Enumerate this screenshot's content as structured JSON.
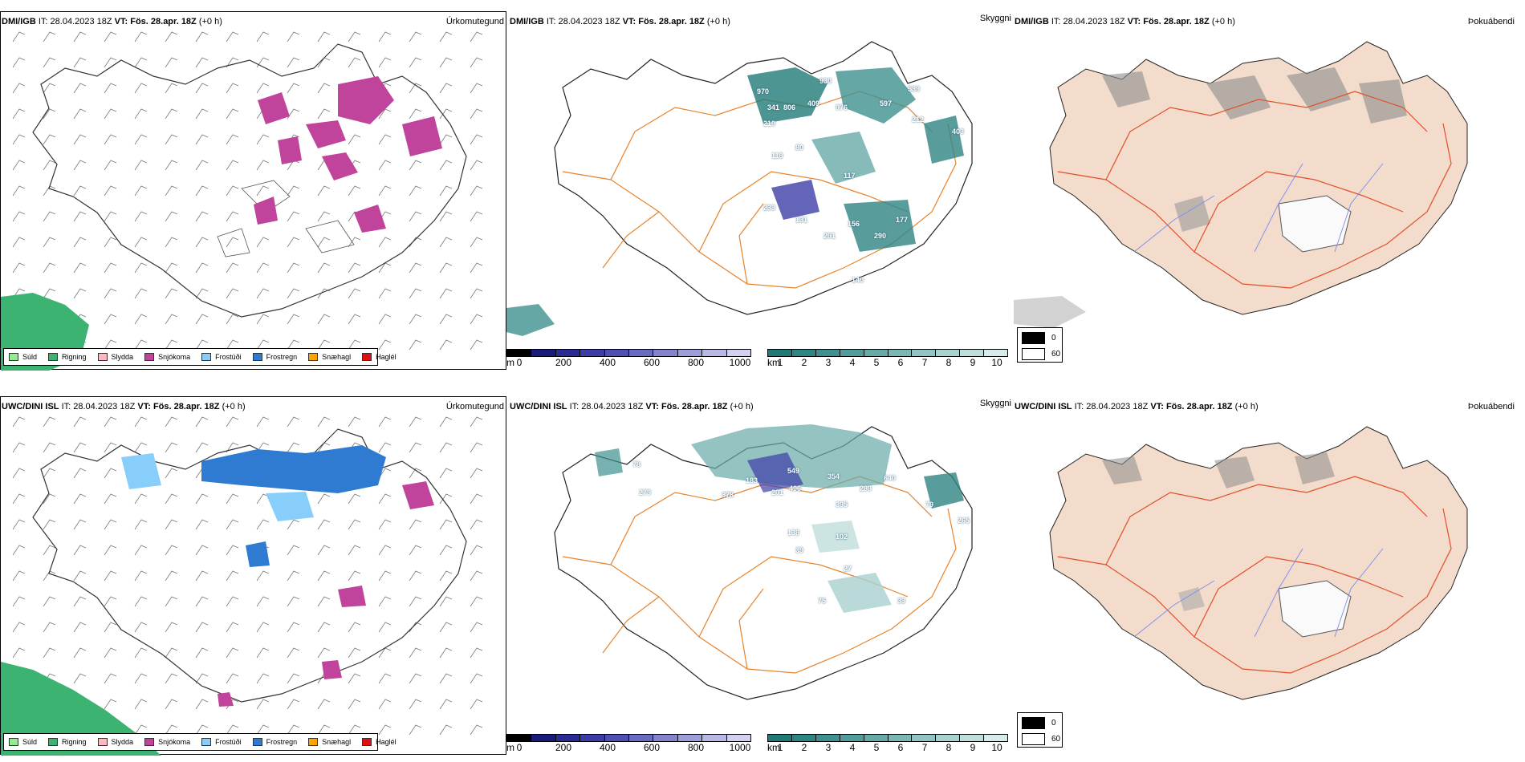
{
  "rows": [
    {
      "model": "DMI/IGB",
      "it_label": "IT:",
      "it_value": "28.04.2023 18Z",
      "vt_label": "VT:",
      "vt_value": "Fös. 28.apr. 18Z",
      "lead": "(+0 h)"
    },
    {
      "model": "UWC/DINI ISL",
      "it_label": "IT:",
      "it_value": "28.04.2023 18Z",
      "vt_label": "VT:",
      "vt_value": "Fös. 28.apr. 18Z",
      "lead": "(+0 h)"
    }
  ],
  "panel_titles": {
    "precip": "Úrkomutegund",
    "visibility": "Skyggni",
    "fog": "Þokuábendi"
  },
  "precip_legend": [
    {
      "label": "Súld",
      "color": "#90ee90"
    },
    {
      "label": "Rigning",
      "color": "#3cb371"
    },
    {
      "label": "Slydda",
      "color": "#ffb6c1"
    },
    {
      "label": "Snjókoma",
      "color": "#c0449b"
    },
    {
      "label": "Frostúði",
      "color": "#87cefa"
    },
    {
      "label": "Frostregn",
      "color": "#2e7bd1"
    },
    {
      "label": "Snæhagl",
      "color": "#ffa500"
    },
    {
      "label": "Haglél",
      "color": "#e01010"
    }
  ],
  "vis_m_scale": {
    "unit": "m",
    "ticks": [
      "0",
      "200",
      "400",
      "600",
      "800",
      "1000"
    ],
    "colors": [
      "#000000",
      "#1a1a7a",
      "#2b2b94",
      "#3d3da8",
      "#5050b4",
      "#6a6ac0",
      "#8484cc",
      "#9e9ed8",
      "#b8b8e4",
      "#d2d2f0"
    ]
  },
  "vis_km_scale": {
    "unit": "km",
    "ticks": [
      "1",
      "2",
      "3",
      "4",
      "5",
      "6",
      "7",
      "8",
      "9",
      "10"
    ],
    "colors": [
      "#1f7a78",
      "#2e8583",
      "#3f918f",
      "#529e9c",
      "#66aaa8",
      "#7bb7b5",
      "#91c4c2",
      "#a8d1cf",
      "#bfdedc",
      "#d6ebea"
    ]
  },
  "fog_legend": [
    {
      "label": "0",
      "color": "#000000"
    },
    {
      "label": "60",
      "color": "#ffffff"
    }
  ],
  "vis_values_top": [
    "970",
    "930",
    "976",
    "539",
    "597",
    "212",
    "403",
    "341",
    "806",
    "409",
    "118",
    "219",
    "80",
    "117",
    "233",
    "131",
    "156",
    "177",
    "291",
    "290",
    "140"
  ],
  "vis_values_bottom": [
    "78",
    "279",
    "378",
    "183",
    "549",
    "406",
    "354",
    "201",
    "640",
    "289",
    "395",
    "79",
    "265",
    "138",
    "102",
    "27",
    "39",
    "75",
    "33"
  ]
}
